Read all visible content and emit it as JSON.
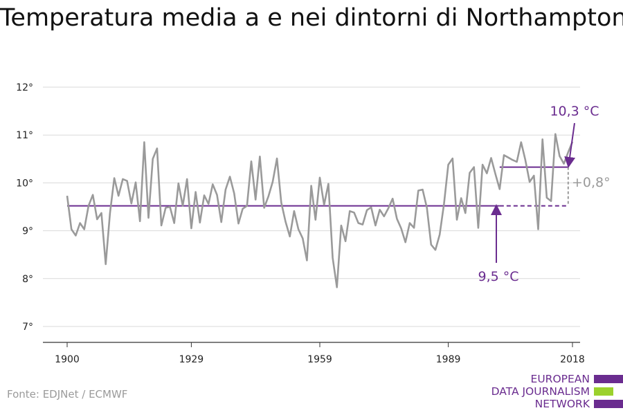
{
  "chart_data": {
    "type": "line",
    "title": "Temperatura media a e nei dintorni di Northampton",
    "source": "Fonte: EDJNet / ECMWF",
    "x_ticks": [
      "1900",
      "1929",
      "1959",
      "1989",
      "2018"
    ],
    "y_ticks": [
      "7°",
      "8°",
      "9°",
      "10°",
      "11°",
      "12°"
    ],
    "ylim": [
      7,
      12
    ],
    "xlim": [
      1900,
      2018
    ],
    "grid": true,
    "series": [
      {
        "color": "#9a9a9a",
        "x": [
          1900,
          1901,
          1902,
          1903,
          1904,
          1905,
          1906,
          1907,
          1908,
          1909,
          1910,
          1911,
          1912,
          1913,
          1914,
          1915,
          1916,
          1917,
          1918,
          1919,
          1920,
          1921,
          1922,
          1923,
          1924,
          1925,
          1926,
          1927,
          1928,
          1929,
          1930,
          1931,
          1932,
          1933,
          1934,
          1935,
          1936,
          1937,
          1938,
          1939,
          1940,
          1941,
          1942,
          1943,
          1944,
          1945,
          1946,
          1947,
          1948,
          1949,
          1950,
          1951,
          1952,
          1953,
          1954,
          1955,
          1956,
          1957,
          1958,
          1959,
          1960,
          1961,
          1962,
          1963,
          1964,
          1965,
          1966,
          1967,
          1968,
          1969,
          1970,
          1971,
          1972,
          1973,
          1974,
          1975,
          1976,
          1977,
          1978,
          1979,
          1980,
          1981,
          1982,
          1983,
          1984,
          1985,
          1986,
          1987,
          1988,
          1989,
          1990,
          1991,
          1992,
          1993,
          1994,
          1995,
          1996,
          1997,
          1998,
          1999,
          2000,
          2001,
          2002,
          2003,
          2004,
          2005,
          2006,
          2007,
          2008,
          2009,
          2010,
          2011,
          2012,
          2013,
          2014,
          2015,
          2016,
          2017,
          2018
        ],
        "values": [
          9.73,
          9.03,
          8.9,
          9.16,
          9.03,
          9.52,
          9.75,
          9.24,
          9.37,
          8.3,
          9.37,
          10.1,
          9.73,
          10.08,
          10.04,
          9.57,
          10.01,
          9.2,
          10.85,
          9.27,
          10.5,
          10.72,
          9.11,
          9.48,
          9.5,
          9.16,
          9.99,
          9.52,
          10.08,
          9.05,
          9.81,
          9.17,
          9.74,
          9.56,
          9.97,
          9.75,
          9.18,
          9.86,
          10.13,
          9.78,
          9.15,
          9.46,
          9.52,
          10.45,
          9.65,
          10.55,
          9.48,
          9.72,
          10.02,
          10.51,
          9.59,
          9.19,
          8.88,
          9.41,
          9.03,
          8.84,
          8.38,
          9.94,
          9.23,
          10.11,
          9.54,
          9.98,
          8.43,
          7.82,
          9.11,
          8.78,
          9.41,
          9.38,
          9.16,
          9.13,
          9.43,
          9.49,
          9.11,
          9.44,
          9.3,
          9.47,
          9.67,
          9.25,
          9.05,
          8.76,
          9.16,
          9.06,
          9.84,
          9.86,
          9.48,
          8.71,
          8.6,
          8.92,
          9.56,
          10.38,
          10.51,
          9.23,
          9.68,
          9.37,
          10.21,
          10.33,
          9.06,
          10.38,
          10.2,
          10.52,
          10.19,
          9.87,
          10.58,
          10.53,
          10.48,
          10.44,
          10.85,
          10.48,
          10.02,
          10.15,
          9.03,
          10.91,
          9.69,
          9.62,
          11.02,
          10.56,
          10.4,
          10.64,
          10.86
        ]
      }
    ],
    "reference_lines": [
      {
        "label": "9,5 °C",
        "value": 9.52,
        "from": 1900,
        "to": 2001,
        "dashed_to": 2017,
        "color": "#6a2c8f"
      },
      {
        "label": "10,3 °C",
        "value": 10.33,
        "from": 2001,
        "to": 2017,
        "color": "#6a2c8f"
      }
    ],
    "difference_label": "+0,8°",
    "difference_color": "#9a9a9a"
  },
  "logo": {
    "lines": [
      "EUROPEAN",
      "DATA JOURNALISM",
      "NETWORK"
    ],
    "colors": [
      "#6a2c8f",
      "#9bd12d",
      "#6a2c8f"
    ]
  }
}
